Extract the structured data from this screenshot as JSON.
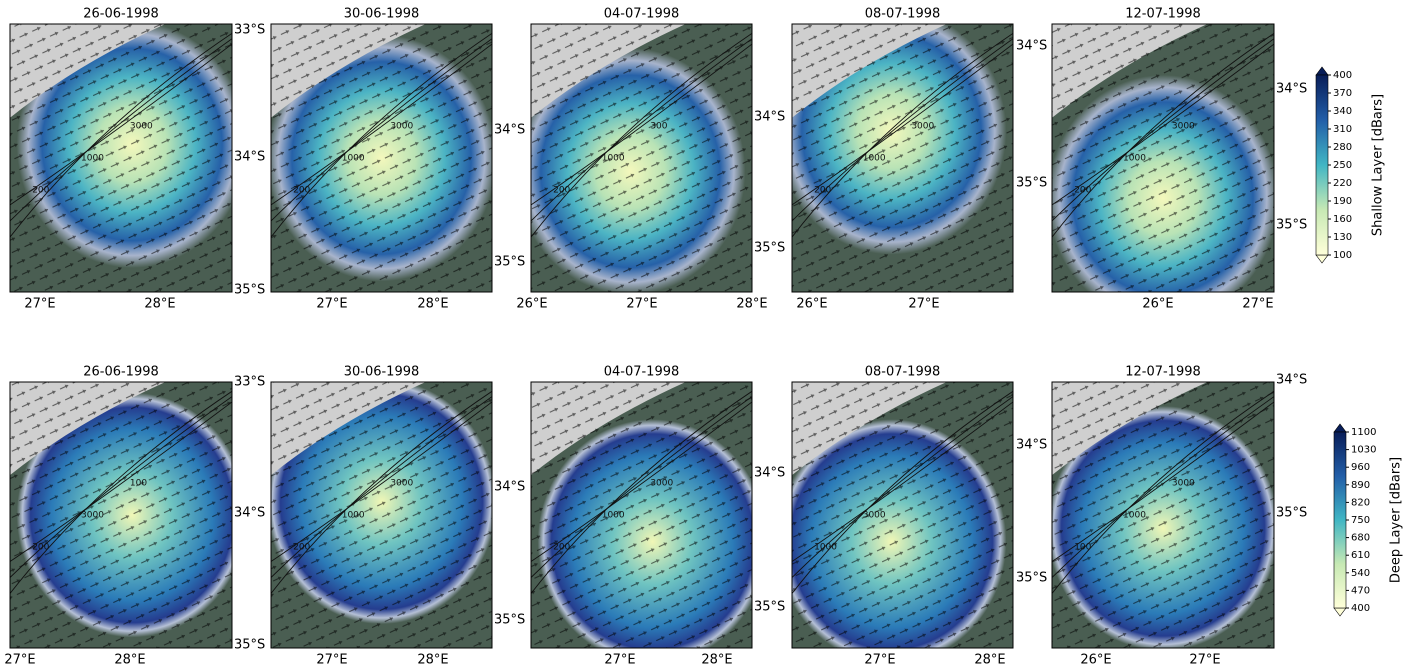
{
  "rows": [
    {
      "colorbar": {
        "label": "Shallow Layer [dBars]",
        "ticks": [
          400,
          370,
          340,
          310,
          280,
          250,
          220,
          190,
          160,
          130,
          100
        ]
      },
      "panels": [
        {
          "title": "26-06-1998",
          "xticks": [
            "27°E",
            "28°E"
          ],
          "yticks": [
            "33°S",
            "34°S",
            "35°S"
          ],
          "contours": [
            "200",
            "1000",
            "3000"
          ]
        },
        {
          "title": "30-06-1998",
          "xticks": [
            "27°E",
            "28°E"
          ],
          "yticks": [
            "34°S",
            "35°S"
          ],
          "contours": [
            "200",
            "1000",
            "3000"
          ]
        },
        {
          "title": "04-07-1998",
          "xticks": [
            "26°E",
            "27°E",
            "28°E"
          ],
          "yticks": [
            "34°S",
            "35°S"
          ],
          "contours": [
            "200",
            "1000",
            "300"
          ]
        },
        {
          "title": "08-07-1998",
          "xticks": [
            "26°E",
            "27°E"
          ],
          "yticks": [
            "34°S",
            "35°S"
          ],
          "contours": [
            "200",
            "1000",
            "3000"
          ]
        },
        {
          "title": "12-07-1998",
          "xticks": [
            "26°E",
            "27°E"
          ],
          "yticks": [
            "34°S",
            "35°S"
          ],
          "contours": [
            "200",
            "1000",
            "3000"
          ]
        }
      ]
    },
    {
      "colorbar": {
        "label": "Deep Layer [dBars]",
        "ticks": [
          1100,
          1030,
          960,
          890,
          820,
          750,
          680,
          610,
          540,
          470,
          400
        ]
      },
      "panels": [
        {
          "title": "26-06-1998",
          "xticks": [
            "27°E",
            "28°E"
          ],
          "yticks": [
            "33°S",
            "34°S",
            "35°S"
          ],
          "contours": [
            "200",
            "3000",
            "100"
          ]
        },
        {
          "title": "30-06-1998",
          "xticks": [
            "27°E",
            "28°E"
          ],
          "yticks": [
            "34°S",
            "35°S"
          ],
          "contours": [
            "200",
            "1000",
            "3000"
          ]
        },
        {
          "title": "04-07-1998",
          "xticks": [
            "27°E",
            "28°E"
          ],
          "yticks": [
            "34°S",
            "35°S"
          ],
          "contours": [
            "200",
            "1000",
            "3000"
          ]
        },
        {
          "title": "08-07-1998",
          "xticks": [
            "27°E",
            "28°E"
          ],
          "yticks": [
            "34°S",
            "35°S"
          ],
          "contours": [
            "1000",
            "3000"
          ]
        },
        {
          "title": "12-07-1998",
          "xticks": [
            "26°E",
            "27°E"
          ],
          "yticks": [
            "34°S",
            "35°S"
          ],
          "contours": [
            "100",
            "1000",
            "3000"
          ]
        }
      ]
    }
  ]
}
